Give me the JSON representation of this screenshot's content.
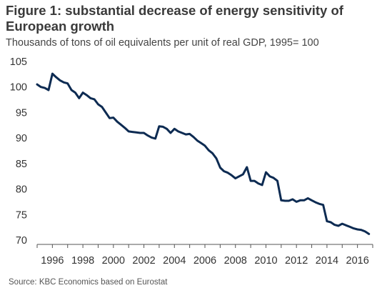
{
  "title": "Figure 1: substantial decrease of energy sensitivity of European growth",
  "subtitle": "Thousands of tons of oil equivalents per unit of real GDP, 1995= 100",
  "source": "Source: KBC Economics based on Eurostat",
  "chart_data": {
    "type": "line",
    "title": "Figure 1: substantial decrease of energy sensitivity of European growth",
    "subtitle": "Thousands of tons of oil equivalents per unit of real GDP, 1995= 100",
    "xlabel": "",
    "ylabel": "",
    "xlim": [
      1995.0,
      2017.0
    ],
    "ylim": [
      70,
      105
    ],
    "y_ticks": [
      70,
      75,
      80,
      85,
      90,
      95,
      100,
      105
    ],
    "x_ticks": [
      1996,
      1998,
      2000,
      2002,
      2004,
      2006,
      2008,
      2010,
      2012,
      2014,
      2016
    ],
    "x_tick_labels": [
      "1996",
      "1998",
      "2000",
      "2002",
      "2004",
      "2006",
      "2008",
      "2010",
      "2012",
      "2014",
      "2016"
    ],
    "grid": false,
    "legend": "none",
    "line_color": "#0d2b52",
    "series": [
      {
        "x": [
          1995.0,
          1995.25,
          1995.5,
          1995.75,
          1996.0,
          1996.25,
          1996.5,
          1996.75,
          1997.0,
          1997.25,
          1997.5,
          1997.75,
          1998.0,
          1998.25,
          1998.5,
          1998.75,
          1999.0,
          1999.25,
          1999.5,
          1999.75,
          2000.0,
          2000.25,
          2000.5,
          2000.75,
          2001.0,
          2001.25,
          2001.5,
          2001.75,
          2002.0,
          2002.25,
          2002.5,
          2002.75,
          2003.0,
          2003.25,
          2003.5,
          2003.75,
          2004.0,
          2004.25,
          2004.5,
          2004.75,
          2005.0,
          2005.25,
          2005.5,
          2005.75,
          2006.0,
          2006.25,
          2006.5,
          2006.75,
          2007.0,
          2007.25,
          2007.5,
          2007.75,
          2008.0,
          2008.25,
          2008.5,
          2008.75,
          2009.0,
          2009.25,
          2009.5,
          2009.75,
          2010.0,
          2010.25,
          2010.5,
          2010.75,
          2011.0,
          2011.25,
          2011.5,
          2011.75,
          2012.0,
          2012.25,
          2012.5,
          2012.75,
          2013.0,
          2013.25,
          2013.5,
          2013.75,
          2014.0,
          2014.25,
          2014.5,
          2014.75,
          2015.0,
          2015.25,
          2015.5,
          2015.75,
          2016.0,
          2016.25,
          2016.5,
          2016.75
        ],
        "values": [
          100.5,
          100.0,
          99.8,
          99.4,
          102.6,
          101.9,
          101.3,
          100.9,
          100.7,
          99.4,
          98.9,
          97.8,
          98.9,
          98.4,
          97.8,
          97.6,
          96.6,
          96.1,
          95.0,
          93.9,
          94.0,
          93.2,
          92.6,
          92.0,
          91.3,
          91.2,
          91.1,
          91.0,
          91.0,
          90.5,
          90.1,
          89.9,
          92.3,
          92.2,
          91.8,
          91.0,
          91.8,
          91.3,
          91.0,
          90.7,
          90.8,
          90.2,
          89.5,
          89.0,
          88.5,
          87.6,
          87.0,
          86.0,
          84.2,
          83.5,
          83.2,
          82.7,
          82.1,
          82.5,
          82.9,
          84.3,
          81.6,
          81.6,
          81.1,
          80.8,
          83.3,
          82.5,
          82.2,
          81.6,
          77.8,
          77.7,
          77.7,
          78.0,
          77.5,
          77.8,
          77.8,
          78.2,
          77.8,
          77.4,
          77.1,
          76.9,
          73.7,
          73.5,
          73.0,
          72.8,
          73.2,
          72.9,
          72.6,
          72.3,
          72.1,
          72.0,
          71.7,
          71.2
        ]
      }
    ]
  }
}
